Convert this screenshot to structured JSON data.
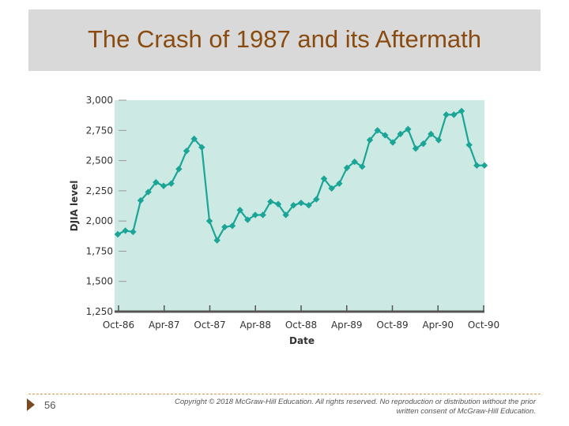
{
  "slide": {
    "title": "The Crash of 1987 and its Aftermath",
    "number": "56",
    "copyright": "Copyright © 2018 McGraw-Hill Education. All rights reserved. No reproduction or distribution without the prior written consent of McGraw-Hill Education."
  },
  "colors": {
    "plot_bg": "#cce9e3",
    "series": "#1aa597",
    "title": "#8a4b10",
    "axis_text": "#333333"
  },
  "chart_data": {
    "type": "line",
    "title": "",
    "xlabel": "Date",
    "ylabel": "DJIA level",
    "ylim": [
      1250,
      3000
    ],
    "yticks": [
      1250,
      1500,
      1750,
      2000,
      2250,
      2500,
      2750,
      3000
    ],
    "ytick_labels": [
      "1,250",
      "1,500",
      "1,750",
      "2,000",
      "2,250",
      "2,500",
      "2,750",
      "3,000"
    ],
    "xtick_labels": [
      "Oct-86",
      "Apr-87",
      "Oct-87",
      "Apr-88",
      "Oct-88",
      "Apr-89",
      "Oct-89",
      "Apr-90",
      "Oct-90"
    ],
    "x_range": [
      "Oct-86",
      "Oct-90"
    ],
    "grid": false,
    "series": [
      {
        "values": [
          1890,
          1920,
          1910,
          2170,
          2240,
          2320,
          2290,
          2310,
          2430,
          2580,
          2680,
          2610,
          2000,
          1840,
          1950,
          1960,
          2090,
          2010,
          2050,
          2050,
          2160,
          2140,
          2050,
          2130,
          2150,
          2130,
          2180,
          2350,
          2270,
          2310,
          2440,
          2490,
          2450,
          2670,
          2750,
          2710,
          2650,
          2720,
          2760,
          2600,
          2640,
          2720,
          2670,
          2880,
          2880,
          2910,
          2630,
          2460,
          2460
        ]
      }
    ]
  }
}
